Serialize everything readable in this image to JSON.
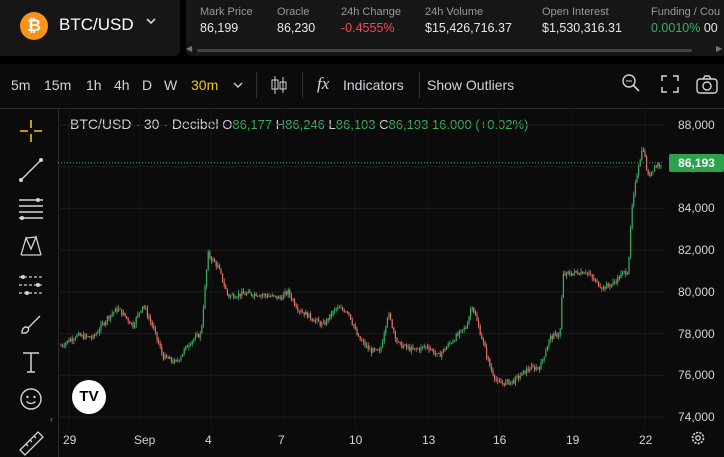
{
  "header": {
    "symbol": "BTC/USD",
    "logo_glyph": "₿",
    "stats": [
      {
        "label": "Mark Price",
        "value": "86,199",
        "color": "#e8e8e8"
      },
      {
        "label": "Oracle",
        "value": "86,230",
        "color": "#e8e8e8"
      },
      {
        "label": "24h Change",
        "value": "-0.4555%",
        "color": "#f2495e"
      },
      {
        "label": "24h Volume",
        "value": "$15,426,716.37",
        "color": "#e8e8e8"
      },
      {
        "label": "Open Interest",
        "value": "$1,530,316.31",
        "color": "#e8e8e8"
      },
      {
        "label": "Funding / Cou",
        "value": "0.0010%",
        "value2": "00",
        "color": "#3ab064"
      }
    ]
  },
  "toolbar": {
    "timeframes": [
      "5m",
      "15m",
      "1h",
      "4h",
      "D",
      "W",
      "30m"
    ],
    "active_timeframe": "30m",
    "indicators_label": "Indicators",
    "outliers_label": "Show Outliers"
  },
  "legend": {
    "title": "BTC/USD · 30 · Decibel",
    "o_label": "O",
    "o_value": "86,177",
    "h_label": "H",
    "h_value": "86,246",
    "l_label": "L",
    "l_value": "86,103",
    "c_label": "C",
    "c_value": "86,193",
    "change": "16.000 (+0.02%)"
  },
  "chart": {
    "last_price_label": "86,193",
    "price_ticks": [
      "88,000",
      "86,000",
      "84,000",
      "82,000",
      "80,000",
      "78,000",
      "76,000",
      "74,000"
    ],
    "date_ticks": [
      "29",
      "Sep",
      "4",
      "7",
      "10",
      "13",
      "16",
      "19",
      "22"
    ],
    "up_color": "#3ab064",
    "down_color": "#e0736a",
    "logo_text": "TV"
  },
  "chart_data": {
    "type": "line",
    "x": [
      "29",
      "Sep",
      "4",
      "7",
      "10",
      "13",
      "16",
      "19",
      "22"
    ],
    "series": [
      {
        "values": [
          77500,
          78200,
          81800,
          79800,
          78400,
          77400,
          75800,
          81200,
          86193
        ]
      }
    ],
    "ylim": [
      74000,
      88000
    ],
    "last_price": 86193
  }
}
